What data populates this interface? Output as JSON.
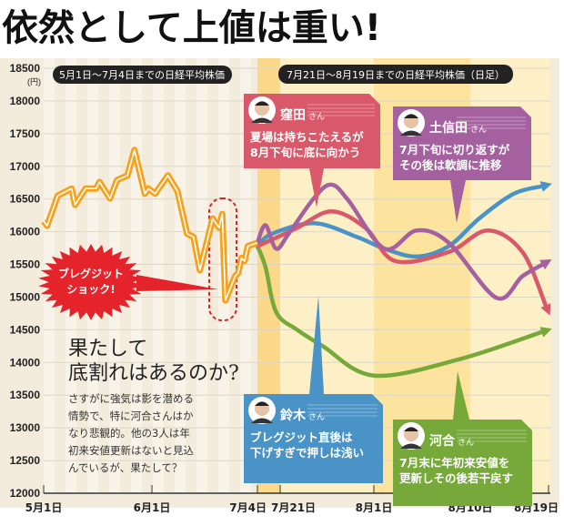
{
  "title": "依然として上値は重い!",
  "labels": {
    "period1": "5月1日～7月4日までの日経平均株価",
    "period2": "7月21日～8月19日までの日経平均株価（日足）",
    "unit": "(円)",
    "brexit_line1": "ブレグジット",
    "brexit_line2": "ショック!"
  },
  "article": {
    "heading_line1": "果たして",
    "heading_line2": "底割れはあるのか?",
    "body_lines": [
      "さすがに強気は影を潜める",
      "情勢で、特に河合さんはか",
      "なり悲観的。他の3人は年",
      "初来安値更新はないと見込",
      "んでいるが、果たして？"
    ]
  },
  "callouts": [
    {
      "name": "窪田",
      "suffix": "さん",
      "lines": [
        "夏場は持ちこたえるが",
        "8月下旬に底に向かう"
      ],
      "color": "#d9596b"
    },
    {
      "name": "土信田",
      "suffix": "さん",
      "lines": [
        "7月下旬に切り返すが",
        "その後は軟調に推移"
      ],
      "color": "#a5619f"
    },
    {
      "name": "鈴木",
      "suffix": "さん",
      "lines": [
        "ブレグジット直後は",
        "下げすぎで押しは浅い"
      ],
      "color": "#4a93c6"
    },
    {
      "name": "河合",
      "suffix": "さん",
      "lines": [
        "7月末に年初来安値を",
        "更新しその後若干戻す"
      ],
      "color": "#77a83a"
    }
  ],
  "chart_data": {
    "type": "line",
    "title": "",
    "ylabel": "(円)",
    "ylim": [
      12000,
      18500
    ],
    "yticks": [
      "18500",
      "18000",
      "17500",
      "17000",
      "16500",
      "16000",
      "15500",
      "15000",
      "14500",
      "14000",
      "13500",
      "13000",
      "12500",
      "12000"
    ],
    "xticks": [
      "5月1日",
      "6月1日",
      "7月4日",
      "7月21日",
      "8月1日",
      "8月10日",
      "8月19日"
    ],
    "grid": true,
    "series": [
      {
        "name": "日経平均株価",
        "color": "#f7a11a",
        "x": [
          "5/1",
          "5/2",
          "5/5",
          "5/9",
          "5/10",
          "5/13",
          "5/16",
          "5/17",
          "5/20",
          "5/22",
          "5/25",
          "5/27",
          "5/30",
          "5/31",
          "6/2",
          "6/6",
          "6/9",
          "6/12",
          "6/14",
          "6/16",
          "6/20",
          "6/22",
          "6/23",
          "6/24",
          "6/27",
          "6/28",
          "6/29",
          "6/30",
          "7/1",
          "7/4"
        ],
        "y": [
          16160,
          16090,
          16550,
          16660,
          16410,
          16660,
          16660,
          16760,
          16510,
          16790,
          16860,
          17250,
          16580,
          16660,
          16580,
          16860,
          16620,
          15970,
          15920,
          15410,
          16200,
          16060,
          16270,
          14950,
          15320,
          15370,
          15600,
          15550,
          15780,
          15830
        ]
      },
      {
        "name": "窪田",
        "color": "#d9596b",
        "x": [
          "7/4",
          "7/15",
          "7/23",
          "7/27",
          "7/31",
          "8/3",
          "8/8",
          "8/12",
          "8/16",
          "8/19"
        ],
        "y": [
          15780,
          15880,
          16060,
          16310,
          16060,
          15550,
          15690,
          16020,
          15690,
          14770
        ]
      },
      {
        "name": "土信田",
        "color": "#a5619f",
        "x": [
          "7/4",
          "7/10",
          "7/18",
          "7/22",
          "7/25",
          "7/27",
          "7/29",
          "8/2",
          "8/5",
          "8/8",
          "8/13",
          "8/16",
          "8/19"
        ],
        "y": [
          15830,
          16100,
          15740,
          15970,
          16520,
          16720,
          16480,
          15740,
          16020,
          15830,
          14990,
          15320,
          15550
        ]
      },
      {
        "name": "鈴木",
        "color": "#4a93c6",
        "x": [
          "7/4",
          "7/15",
          "7/25",
          "7/30",
          "8/2",
          "8/5",
          "8/8",
          "8/11",
          "8/15",
          "8/19"
        ],
        "y": [
          15780,
          15970,
          16130,
          15920,
          15740,
          15620,
          15780,
          16200,
          16580,
          16720
        ]
      },
      {
        "name": "河合",
        "color": "#77a83a",
        "x": [
          "7/4",
          "7/10",
          "7/18",
          "7/23",
          "7/26",
          "8/1",
          "8/9",
          "8/19"
        ],
        "y": [
          15780,
          15460,
          14770,
          14500,
          14250,
          13800,
          14050,
          14500
        ]
      }
    ],
    "annotations": [
      "ブレグジット ショック!"
    ]
  }
}
